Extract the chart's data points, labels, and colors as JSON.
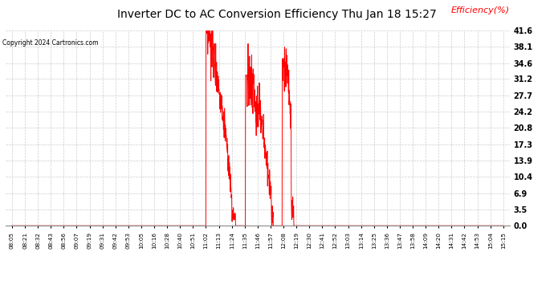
{
  "title": "Inverter DC to AC Conversion Efficiency Thu Jan 18 15:27",
  "copyright": "Copyright 2024 Cartronics.com",
  "legend_label": "Efficiency(%)",
  "line_color": "red",
  "background_color": "#ffffff",
  "grid_color": "#c0c0c0",
  "yticks": [
    0.0,
    3.5,
    6.9,
    10.4,
    13.9,
    17.3,
    20.8,
    24.2,
    27.7,
    31.2,
    34.6,
    38.1,
    41.6
  ],
  "ymax": 41.6,
  "ymin": 0.0,
  "xtick_labels": [
    "08:05",
    "08:21",
    "08:32",
    "08:43",
    "08:56",
    "09:07",
    "09:19",
    "09:31",
    "09:42",
    "09:53",
    "10:05",
    "10:16",
    "10:28",
    "10:40",
    "10:51",
    "11:02",
    "11:13",
    "11:24",
    "11:35",
    "11:46",
    "11:57",
    "12:08",
    "12:19",
    "12:30",
    "12:41",
    "12:52",
    "13:03",
    "13:14",
    "13:25",
    "13:36",
    "13:47",
    "13:58",
    "14:09",
    "14:20",
    "14:31",
    "14:42",
    "14:53",
    "15:04",
    "15:15"
  ],
  "n_points": 39
}
